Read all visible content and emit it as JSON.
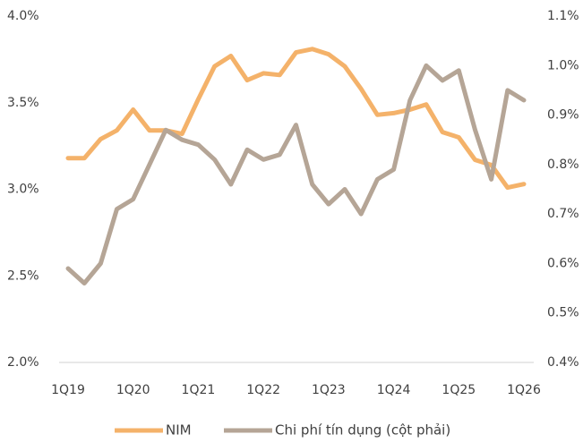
{
  "chart_data": {
    "type": "line",
    "categories": [
      "1Q19",
      null,
      null,
      null,
      "1Q20",
      null,
      null,
      null,
      "1Q21",
      null,
      null,
      null,
      "1Q22",
      null,
      null,
      null,
      "1Q23",
      null,
      null,
      null,
      "1Q24",
      null,
      null,
      null,
      "1Q25",
      null,
      null,
      null,
      "1Q26"
    ],
    "series": [
      {
        "name": "NIM",
        "color": "#f4b26a",
        "values": [
          3.18,
          3.18,
          3.29,
          3.34,
          3.46,
          3.34,
          3.34,
          3.32,
          3.52,
          3.71,
          3.77,
          3.63,
          3.67,
          3.66,
          3.79,
          3.81,
          3.78,
          3.71,
          3.58,
          3.43,
          3.44,
          3.46,
          3.49,
          3.33,
          3.3,
          3.17,
          3.14,
          3.01,
          3.03
        ]
      },
      {
        "name": "Chi phí tín dụng (cột phải)",
        "color": "#b5a596",
        "axis": "y2",
        "values": [
          0.59,
          0.56,
          0.6,
          0.71,
          0.73,
          0.8,
          0.87,
          0.85,
          0.84,
          0.81,
          0.76,
          0.83,
          0.81,
          0.82,
          0.88,
          0.76,
          0.72,
          0.75,
          0.7,
          0.77,
          0.79,
          0.93,
          1.0,
          0.97,
          0.99,
          0.87,
          0.77,
          0.95,
          0.93
        ]
      }
    ],
    "ylim": [
      2.0,
      4.0
    ],
    "yticks": [
      {
        "value": 2.0,
        "label": "2.0%"
      },
      {
        "value": 2.5,
        "label": "2.5%"
      },
      {
        "value": 3.0,
        "label": "3.0%"
      },
      {
        "value": 3.5,
        "label": "3.5%"
      },
      {
        "value": 4.0,
        "label": "4.0%"
      }
    ],
    "y2lim": [
      0.4,
      1.1
    ],
    "y2ticks": [
      {
        "value": 0.4,
        "label": "0.4%"
      },
      {
        "value": 0.5,
        "label": "0.5%"
      },
      {
        "value": 0.6,
        "label": "0.6%"
      },
      {
        "value": 0.7,
        "label": "0.7%"
      },
      {
        "value": 0.8,
        "label": "0.8%"
      },
      {
        "value": 0.9,
        "label": "0.9%"
      },
      {
        "value": 1.0,
        "label": "1.0%"
      },
      {
        "value": 1.1,
        "label": "1.1%"
      }
    ],
    "grid": false,
    "legend": "bottom"
  }
}
